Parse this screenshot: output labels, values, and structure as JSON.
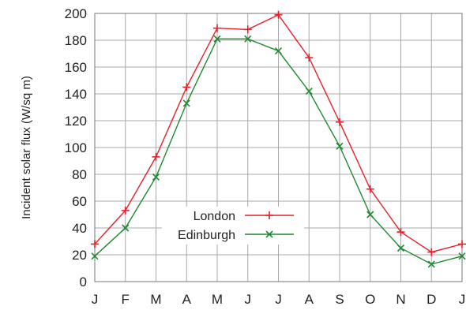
{
  "chart_data": {
    "type": "line",
    "title": "",
    "xlabel": "",
    "ylabel": "Incident solar flux (W/sq m)",
    "categories": [
      "J",
      "F",
      "M",
      "A",
      "M",
      "J",
      "J",
      "A",
      "S",
      "O",
      "N",
      "D",
      "J"
    ],
    "ylim": [
      0,
      200
    ],
    "yticks": [
      0,
      20,
      40,
      60,
      80,
      100,
      120,
      140,
      160,
      180,
      200
    ],
    "grid": true,
    "legend_position": "center-left",
    "series": [
      {
        "name": "London",
        "color": "#e8202a",
        "marker": "plus",
        "values": [
          28,
          53,
          93,
          145,
          189,
          188,
          199,
          167,
          119,
          69,
          37,
          22,
          28
        ]
      },
      {
        "name": "Edinburgh",
        "color": "#1f8a2f",
        "marker": "cross",
        "values": [
          19,
          40,
          78,
          133,
          181,
          181,
          172,
          142,
          101,
          50,
          25,
          13,
          19
        ]
      }
    ]
  }
}
